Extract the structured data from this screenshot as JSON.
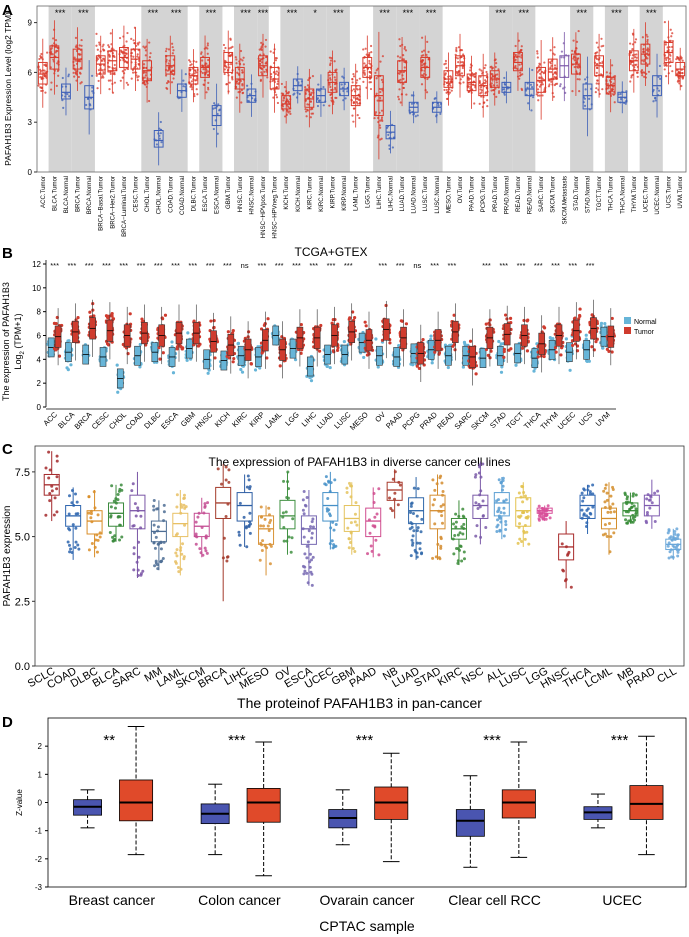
{
  "chart_data": [
    {
      "panel": "A",
      "type": "box",
      "title": "",
      "ylabel": "PAFAH1B3 Expression Level (log2 TPM)",
      "ylim": [
        0,
        10
      ],
      "yticks": [
        0,
        3,
        6,
        9
      ],
      "categories": [
        "ACC.Tumor",
        "BLCA.Tumor",
        "BLCA.Normal",
        "BRCA.Tumor",
        "BRCA.Normal",
        "BRCA-Basal.Tumor",
        "BRCA-Her2.Tumor",
        "BRCA-Luminal.Tumor",
        "CESC.Tumor",
        "CHOL.Tumor",
        "CHOL.Normal",
        "COAD.Tumor",
        "COAD.Normal",
        "DLBC.Tumor",
        "ESCA.Tumor",
        "ESCA.Normal",
        "GBM.Tumor",
        "HNSC.Tumor",
        "HNSC.Normal",
        "HNSC-HPVpos.Tumor",
        "HNSC-HPVneg.Tumor",
        "KICH.Tumor",
        "KICH.Normal",
        "KIRC.Tumor",
        "KIRC.Normal",
        "KIRP.Tumor",
        "KIRP.Normal",
        "LAML.Tumor",
        "LGG.Tumor",
        "LIHC.Tumor",
        "LIHC.Normal",
        "LUAD.Tumor",
        "LUAD.Normal",
        "LUSC.Tumor",
        "LUSC.Normal",
        "MESO.Tumor",
        "OV.Tumor",
        "PAAD.Tumor",
        "PCPG.Tumor",
        "PRAD.Tumor",
        "PRAD.Normal",
        "READ.Tumor",
        "READ.Normal",
        "SARC.Tumor",
        "SKCM.Tumor",
        "SKCM.Metastasis",
        "STAD.Tumor",
        "STAD.Normal",
        "TGCT.Tumor",
        "THCA.Tumor",
        "THCA.Normal",
        "THYM.Tumor",
        "UCEC.Tumor",
        "UCEC.Normal",
        "UCS.Tumor",
        "UVM.Tumor"
      ],
      "kinds": [
        "t",
        "t",
        "n",
        "t",
        "n",
        "t",
        "t",
        "t",
        "t",
        "t",
        "n",
        "t",
        "n",
        "t",
        "t",
        "n",
        "t",
        "t",
        "n",
        "t",
        "t",
        "t",
        "n",
        "t",
        "n",
        "t",
        "n",
        "t",
        "t",
        "t",
        "n",
        "t",
        "n",
        "t",
        "n",
        "t",
        "t",
        "t",
        "t",
        "t",
        "n",
        "t",
        "n",
        "t",
        "t",
        "m",
        "t",
        "n",
        "t",
        "t",
        "n",
        "t",
        "t",
        "n",
        "t",
        "t"
      ],
      "medians": [
        5.9,
        6.9,
        4.8,
        6.8,
        4.5,
        6.5,
        6.7,
        6.9,
        6.8,
        6.1,
        1.9,
        6.4,
        4.9,
        5.8,
        6.3,
        3.4,
        6.6,
        5.6,
        4.6,
        6.4,
        5.6,
        4.1,
        5.2,
        4.4,
        4.6,
        5.4,
        5.0,
        4.6,
        6.3,
        4.6,
        2.4,
        6.1,
        3.9,
        6.3,
        3.9,
        5.6,
        6.4,
        5.4,
        5.2,
        5.6,
        5.1,
        6.6,
        5.0,
        5.5,
        6.2,
        6.4,
        6.5,
        4.6,
        6.4,
        5.2,
        4.5,
        6.7,
        7.1,
        5.2,
        7.2,
        6.2
      ],
      "q1": [
        5.3,
        6.2,
        4.4,
        6.2,
        3.8,
        5.9,
        6.1,
        6.3,
        6.2,
        5.5,
        1.5,
        5.9,
        4.5,
        5.3,
        5.7,
        2.8,
        6.0,
        5.0,
        4.2,
        5.8,
        5.0,
        3.8,
        4.9,
        3.9,
        4.2,
        4.8,
        4.6,
        4.0,
        5.7,
        3.4,
        2.0,
        5.4,
        3.6,
        5.7,
        3.6,
        5.1,
        5.8,
        4.9,
        4.6,
        5.1,
        4.8,
        6.1,
        4.6,
        4.8,
        5.6,
        5.7,
        5.9,
        3.8,
        5.8,
        4.7,
        4.2,
        6.1,
        6.5,
        4.6,
        6.6,
        5.8
      ],
      "q3": [
        6.6,
        7.6,
        5.3,
        7.4,
        5.2,
        7.0,
        7.3,
        7.5,
        7.4,
        6.7,
        2.5,
        7.0,
        5.3,
        6.3,
        6.9,
        4.0,
        7.2,
        6.3,
        5.0,
        7.0,
        6.3,
        4.6,
        5.6,
        5.0,
        5.0,
        6.0,
        5.4,
        5.2,
        6.9,
        5.8,
        2.8,
        6.7,
        4.2,
        6.9,
        4.2,
        6.1,
        7.0,
        5.9,
        5.8,
        6.1,
        5.4,
        7.2,
        5.4,
        6.3,
        6.8,
        7.0,
        7.1,
        5.3,
        7.0,
        5.7,
        4.8,
        7.3,
        7.7,
        5.8,
        7.8,
        6.6
      ],
      "significance": [
        "",
        "***",
        "",
        "***",
        "",
        "",
        "",
        "",
        "",
        "***",
        "",
        "***",
        "",
        "",
        "***",
        "",
        "",
        "***",
        "",
        "***",
        "",
        "***",
        "",
        "*",
        "",
        "***",
        "",
        "",
        "",
        "***",
        "",
        "***",
        "",
        "***",
        "",
        "",
        "",
        "",
        "",
        "***",
        "",
        "***",
        "",
        "",
        "",
        "",
        "***",
        "",
        "",
        "***",
        "",
        "",
        "***",
        "",
        "",
        ""
      ],
      "tick_labels": [
        "ACC.Tumor",
        "BLCA.Tumor",
        "BLCA.Normal",
        "BRCA.Tumor",
        "BRCA.Normal",
        "BRCA−Basal.Tumor",
        "BRCA−Her2.Tumor",
        "BRCA−Luminal.Tumor",
        "CESC.Tumor",
        "CHOL.Tumor",
        "CHOL.Normal",
        "COAD.Tumor",
        "COAD.Normal",
        "DLBC.Tumor",
        "ESCA.Tumor",
        "ESCA.Normal",
        "GBM.Tumor",
        "HNSC.Tumor",
        "HNSC.Normal",
        "HNSC−HPVpos.Tumor",
        "HNSC−HPVneg.Tumor",
        "KICH.Tumor",
        "KICH.Normal",
        "KIRC.Tumor",
        "KIRC.Normal",
        "KIRP.Tumor",
        "KIRP.Normal",
        "LAML.Tumor",
        "LGG.Tumor",
        "LIHC.Tumor",
        "LIHC.Normal",
        "LUAD.Tumor",
        "LUAD.Normal",
        "LUSC.Tumor",
        "LUSC.Normal",
        "MESO.Tumor",
        "OV.Tumor",
        "PAAD.Tumor",
        "PCPG.Tumor",
        "PRAD.Tumor",
        "PRAD.Normal",
        "READ.Tumor",
        "READ.Normal",
        "SARC.Tumor",
        "SKCM.Tumor",
        "SKCM.Metastasis",
        "STAD.Tumor",
        "STAD.Normal",
        "TGCT.Tumor",
        "THCA.Tumor",
        "THCA.Normal",
        "THYM.Tumor",
        "UCEC.Tumor",
        "UCEC.Normal",
        "UCS.Tumor",
        "UVM.Tumor"
      ],
      "colors": {
        "tumor": "#d93a2b",
        "normal": "#3e60b8",
        "metastasis": "#7b58a8",
        "shade": "#d4d4d4"
      }
    },
    {
      "panel": "B",
      "type": "violin-box",
      "title": "TCGA+GTEX",
      "ylabel_line1": "The expression of PAFAH1B3",
      "ylabel_line2": "Log",
      "ylabel_sub": "2",
      "ylabel_tail": " (TPM+1)",
      "ylim": [
        0,
        12
      ],
      "yticks": [
        0,
        2,
        4,
        6,
        8,
        10,
        12
      ],
      "categories": [
        "ACC",
        "BLCA",
        "BRCA",
        "CESC",
        "CHOL",
        "COAD",
        "DLBC",
        "ESCA",
        "GBM",
        "HNSC",
        "KICH",
        "KIRC",
        "KIRP",
        "LAML",
        "LGG",
        "LIHC",
        "LUAD",
        "LUSC",
        "MESO",
        "OV",
        "PAAD",
        "PCPG",
        "PRAD",
        "READ",
        "SARC",
        "SKCM",
        "STAD",
        "TGCT",
        "THCA",
        "THYM",
        "UCEC",
        "UCS",
        "UVM"
      ],
      "normal_medians": [
        5.0,
        4.6,
        4.4,
        4.2,
        2.4,
        4.3,
        4.6,
        4.2,
        4.9,
        4.0,
        3.9,
        4.3,
        4.2,
        6.0,
        4.9,
        3.4,
        4.4,
        4.4,
        5.4,
        4.3,
        4.2,
        4.5,
        4.8,
        4.3,
        4.3,
        4.1,
        4.3,
        4.5,
        4.1,
        4.8,
        4.6,
        4.8,
        5.9
      ],
      "tumor_medians": [
        5.9,
        6.3,
        6.6,
        6.4,
        6.0,
        6.2,
        6.0,
        6.2,
        6.2,
        5.5,
        5.2,
        4.8,
        5.6,
        4.8,
        5.8,
        5.8,
        6.0,
        6.3,
        5.6,
        6.5,
        5.8,
        4.5,
        5.6,
        6.3,
        4.2,
        5.8,
        6.1,
        6.0,
        5.3,
        6.0,
        6.4,
        6.6,
        5.9
      ],
      "significance": [
        "***",
        "***",
        "***",
        "***",
        "***",
        "***",
        "***",
        "***",
        "***",
        "***",
        "***",
        "ns",
        "***",
        "***",
        "***",
        "***",
        "***",
        "***",
        "",
        "***",
        "***",
        "ns",
        "***",
        "***",
        "",
        "***",
        "***",
        "***",
        "***",
        "***",
        "***",
        "***",
        ""
      ],
      "legend": [
        "Normal",
        "Tumor"
      ],
      "legend_position": "right",
      "colors": {
        "normal": "#67b5d8",
        "tumor": "#cf3b2e"
      }
    },
    {
      "panel": "C",
      "type": "box",
      "title": "The expression of PAFAH1B3 in diverse cancer cell lines",
      "ylabel": "PAFAH1B3 expression",
      "xlabel": "The proteinof PAFAH1B3 in pan-cancer",
      "ylim": [
        0,
        8.5
      ],
      "yticks": [
        0.0,
        2.5,
        5.0,
        7.5
      ],
      "ytick_labels": [
        "0.0",
        "2.5",
        "5.0",
        "7.5"
      ],
      "categories": [
        "SCLC",
        "COAD",
        "DLBC",
        "BLCA",
        "SARC",
        "MM",
        "LAML",
        "SKCM",
        "BRCA",
        "LIHC",
        "MESO",
        "OV",
        "ESCA",
        "UCEC",
        "GBM",
        "PAAD",
        "NB",
        "LUAD",
        "STAD",
        "KIRC",
        "NSC",
        "ALL",
        "LUSC",
        "LGG",
        "HNSC",
        "THCA",
        "LCML",
        "MB",
        "PRAD",
        "CLL"
      ],
      "medians": [
        7.0,
        5.8,
        5.6,
        5.9,
        6.0,
        5.2,
        5.5,
        5.4,
        6.3,
        6.2,
        5.3,
        5.8,
        5.3,
        6.2,
        5.7,
        5.6,
        6.8,
        6.0,
        6.0,
        5.3,
        6.2,
        6.3,
        6.0,
        6.0,
        4.6,
        6.2,
        5.7,
        6.0,
        6.2,
        4.7
      ],
      "q1": [
        6.6,
        5.4,
        5.1,
        5.4,
        5.3,
        4.8,
        5.0,
        5.0,
        5.7,
        5.6,
        4.7,
        5.3,
        4.7,
        5.6,
        5.2,
        5.0,
        6.4,
        5.5,
        5.3,
        4.9,
        5.7,
        5.8,
        5.4,
        5.9,
        4.1,
        5.7,
        5.3,
        5.8,
        5.8,
        4.5
      ],
      "q3": [
        7.4,
        6.2,
        6.0,
        6.3,
        6.6,
        5.6,
        5.9,
        5.9,
        6.9,
        6.7,
        5.8,
        6.4,
        5.8,
        6.7,
        6.2,
        6.1,
        7.1,
        6.5,
        6.6,
        5.7,
        6.6,
        6.7,
        6.5,
        6.1,
        5.1,
        6.6,
        6.1,
        6.3,
        6.6,
        4.9
      ],
      "lower": [
        5.6,
        4.1,
        4.2,
        4.8,
        3.4,
        3.7,
        3.5,
        4.2,
        2.5,
        4.6,
        3.5,
        4.3,
        3.1,
        4.5,
        4.3,
        4.2,
        5.7,
        4.1,
        4.1,
        3.9,
        4.7,
        4.9,
        4.6,
        5.6,
        3.0,
        5.1,
        4.3,
        5.5,
        5.3,
        4.1
      ],
      "upper": [
        8.3,
        6.9,
        6.8,
        7.0,
        7.5,
        6.4,
        6.8,
        6.5,
        7.8,
        7.4,
        6.2,
        7.5,
        6.8,
        7.5,
        7.1,
        6.9,
        7.6,
        7.3,
        7.4,
        6.4,
        7.9,
        7.3,
        7.1,
        6.2,
        5.6,
        7.0,
        7.1,
        6.7,
        7.2,
        5.3
      ],
      "colors": [
        "#a3282a",
        "#2c64ae",
        "#d98d27",
        "#3a8a3c",
        "#7a55a6",
        "#4d6d94",
        "#e8c064",
        "#c44e93",
        "#a33a2a",
        "#2d5ea4",
        "#d89236",
        "#3f9041",
        "#7567b1",
        "#4590c8",
        "#e4c35e",
        "#d04d8f",
        "#a83a2c",
        "#2f67a9",
        "#d48c2f",
        "#3c8c3a",
        "#7a5aa8",
        "#5b9fd3",
        "#e3c24f",
        "#d84f99",
        "#a82b2b",
        "#2e66b1",
        "#d38e2c",
        "#358b35",
        "#7f5cb0",
        "#6aa7d9"
      ]
    },
    {
      "panel": "D",
      "type": "box",
      "title": "",
      "ylabel": "Z-value",
      "xlabel": "CPTAC sample",
      "ylim": [
        -3,
        3
      ],
      "yticks": [
        -3,
        -2,
        -1,
        0,
        1,
        2
      ],
      "categories": [
        "Breast cancer",
        "Colon cancer",
        "Ovarain cancer",
        "Clear cell RCC",
        "UCEC"
      ],
      "significance": [
        "**",
        "***",
        "***",
        "***",
        "***"
      ],
      "normal": {
        "q1": [
          -0.45,
          -0.75,
          -0.9,
          -1.2,
          -0.6
        ],
        "median": [
          -0.15,
          -0.4,
          -0.55,
          -0.65,
          -0.35
        ],
        "q3": [
          0.1,
          -0.05,
          -0.25,
          -0.25,
          -0.15
        ],
        "lower": [
          -0.9,
          -1.85,
          -1.5,
          -2.3,
          -0.9
        ],
        "upper": [
          0.45,
          0.65,
          0.45,
          0.95,
          0.3
        ]
      },
      "tumor": {
        "q1": [
          -0.65,
          -0.7,
          -0.6,
          -0.55,
          -0.6
        ],
        "median": [
          0.0,
          0.0,
          0.0,
          0.0,
          -0.05
        ],
        "q3": [
          0.8,
          0.5,
          0.55,
          0.45,
          0.6
        ],
        "lower": [
          -1.85,
          -2.6,
          -2.1,
          -1.95,
          -1.85
        ],
        "upper": [
          2.7,
          2.15,
          1.75,
          2.15,
          2.35
        ]
      },
      "colors": {
        "normal": "#4a55b0",
        "tumor": "#e04a2a"
      }
    }
  ],
  "panel_letters": [
    "A",
    "B",
    "C",
    "D"
  ]
}
